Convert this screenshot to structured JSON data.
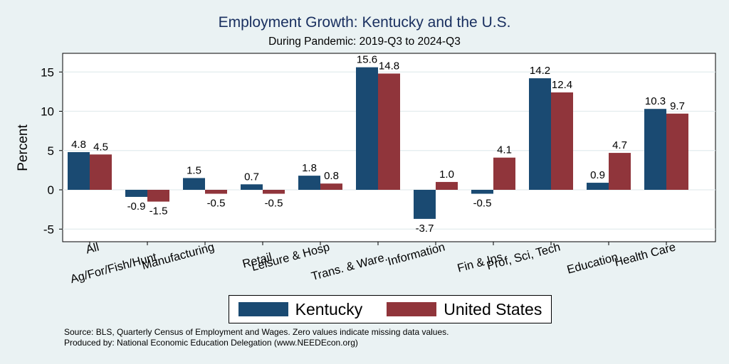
{
  "chart_data": {
    "type": "bar",
    "title": "Employment Growth: Kentucky and the U.S.",
    "subtitle": "During Pandemic: 2019-Q3 to 2024-Q3",
    "ylabel": "Percent",
    "ylim": [
      -7,
      17
    ],
    "yticks": [
      -5,
      0,
      5,
      10,
      15
    ],
    "grid": true,
    "legend_position": "bottom",
    "categories": [
      "All",
      "Ag/For/Fish/Hunt",
      "Manufacturing",
      "Retail",
      "Leisure & Hosp",
      "Trans. & Ware.",
      "Information",
      "Fin & Ins",
      "Prof, Sci, Tech",
      "Education",
      "Health Care"
    ],
    "series": [
      {
        "name": "Kentucky",
        "color": "#1a4a72",
        "values": [
          4.8,
          -0.9,
          1.5,
          0.7,
          1.8,
          15.6,
          -3.7,
          -0.5,
          14.2,
          0.9,
          10.3
        ],
        "labels": [
          "4.8",
          "-0.9",
          "1.5",
          "0.7",
          "1.8",
          "15.6",
          "-3.7",
          "-0.5",
          "14.2",
          "0.9",
          "10.3"
        ]
      },
      {
        "name": "United States",
        "color": "#90353b",
        "values": [
          4.5,
          -1.5,
          -0.5,
          -0.5,
          0.8,
          14.8,
          1.0,
          4.1,
          12.4,
          4.7,
          9.7
        ],
        "labels": [
          "4.5",
          "-1.5",
          "-0.5",
          "-0.5",
          "0.8",
          "14.8",
          "1.0",
          "4.1",
          "12.4",
          "4.7",
          "9.7"
        ]
      }
    ]
  },
  "source_note": "Source: BLS, Quarterly Census of Employment and Wages. Zero values indicate missing data values.",
  "produced_note": "Produced by: National Economic Education Delegation (www.NEEDEcon.org)"
}
